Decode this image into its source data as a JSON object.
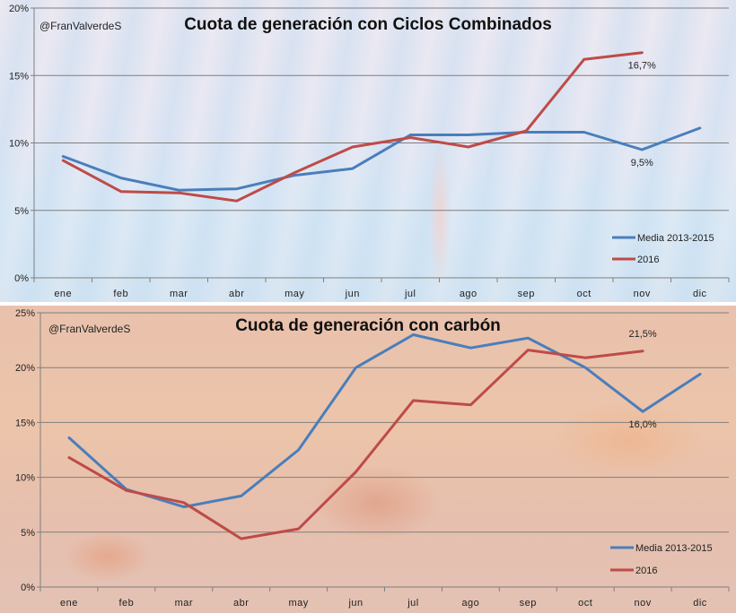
{
  "colors": {
    "media": "#4a7ebb",
    "y2016": "#be4b48"
  },
  "chart_data": [
    {
      "id": "ciclos",
      "type": "line",
      "title": "Cuota de generación con Ciclos Combinados",
      "watermark": "@FranValverdeS",
      "categories": [
        "ene",
        "feb",
        "mar",
        "abr",
        "may",
        "jun",
        "jul",
        "ago",
        "sep",
        "oct",
        "nov",
        "dic"
      ],
      "ylim": [
        0,
        20
      ],
      "yticks": [
        0,
        5,
        10,
        15,
        20
      ],
      "ytick_labels": [
        "0%",
        "5%",
        "10%",
        "15%",
        "20%"
      ],
      "grid": true,
      "legend": {
        "placement": "bottom-right",
        "entries": [
          "Media 2013-2015",
          "2016"
        ]
      },
      "series": [
        {
          "name": "Media 2013-2015",
          "color": "#4a7ebb",
          "values": [
            9.0,
            7.4,
            6.5,
            6.6,
            7.6,
            8.1,
            10.6,
            10.6,
            10.8,
            10.8,
            9.5,
            11.1
          ]
        },
        {
          "name": "2016",
          "color": "#be4b48",
          "values": [
            8.7,
            6.4,
            6.3,
            5.7,
            7.8,
            9.7,
            10.4,
            9.7,
            10.9,
            16.2,
            16.7,
            null
          ]
        }
      ],
      "annotations": [
        {
          "text": "16,7%",
          "series": "2016",
          "category": "nov",
          "position": "below"
        },
        {
          "text": "9,5%",
          "series": "Media 2013-2015",
          "category": "nov",
          "position": "below"
        }
      ]
    },
    {
      "id": "carbon",
      "type": "line",
      "title": "Cuota de generación con carbón",
      "watermark": "@FranValverdeS",
      "categories": [
        "ene",
        "feb",
        "mar",
        "abr",
        "may",
        "jun",
        "jul",
        "ago",
        "sep",
        "oct",
        "nov",
        "dic"
      ],
      "ylim": [
        0,
        25
      ],
      "yticks": [
        0,
        5,
        10,
        15,
        20,
        25
      ],
      "ytick_labels": [
        "0%",
        "5%",
        "10%",
        "15%",
        "20%",
        "25%"
      ],
      "grid": true,
      "legend": {
        "placement": "bottom-right",
        "entries": [
          "Media 2013-2015",
          "2016"
        ]
      },
      "series": [
        {
          "name": "Media 2013-2015",
          "color": "#4a7ebb",
          "values": [
            13.6,
            8.9,
            7.3,
            8.3,
            12.5,
            20.0,
            23.0,
            21.8,
            22.7,
            20.0,
            16.0,
            19.4
          ]
        },
        {
          "name": "2016",
          "color": "#be4b48",
          "values": [
            11.8,
            8.8,
            7.7,
            4.4,
            5.3,
            10.5,
            17.0,
            16.6,
            21.6,
            20.9,
            21.5,
            null
          ]
        }
      ],
      "annotations": [
        {
          "text": "21,5%",
          "series": "2016",
          "category": "nov",
          "position": "above"
        },
        {
          "text": "16,0%",
          "series": "Media 2013-2015",
          "category": "nov",
          "position": "below"
        }
      ]
    }
  ]
}
